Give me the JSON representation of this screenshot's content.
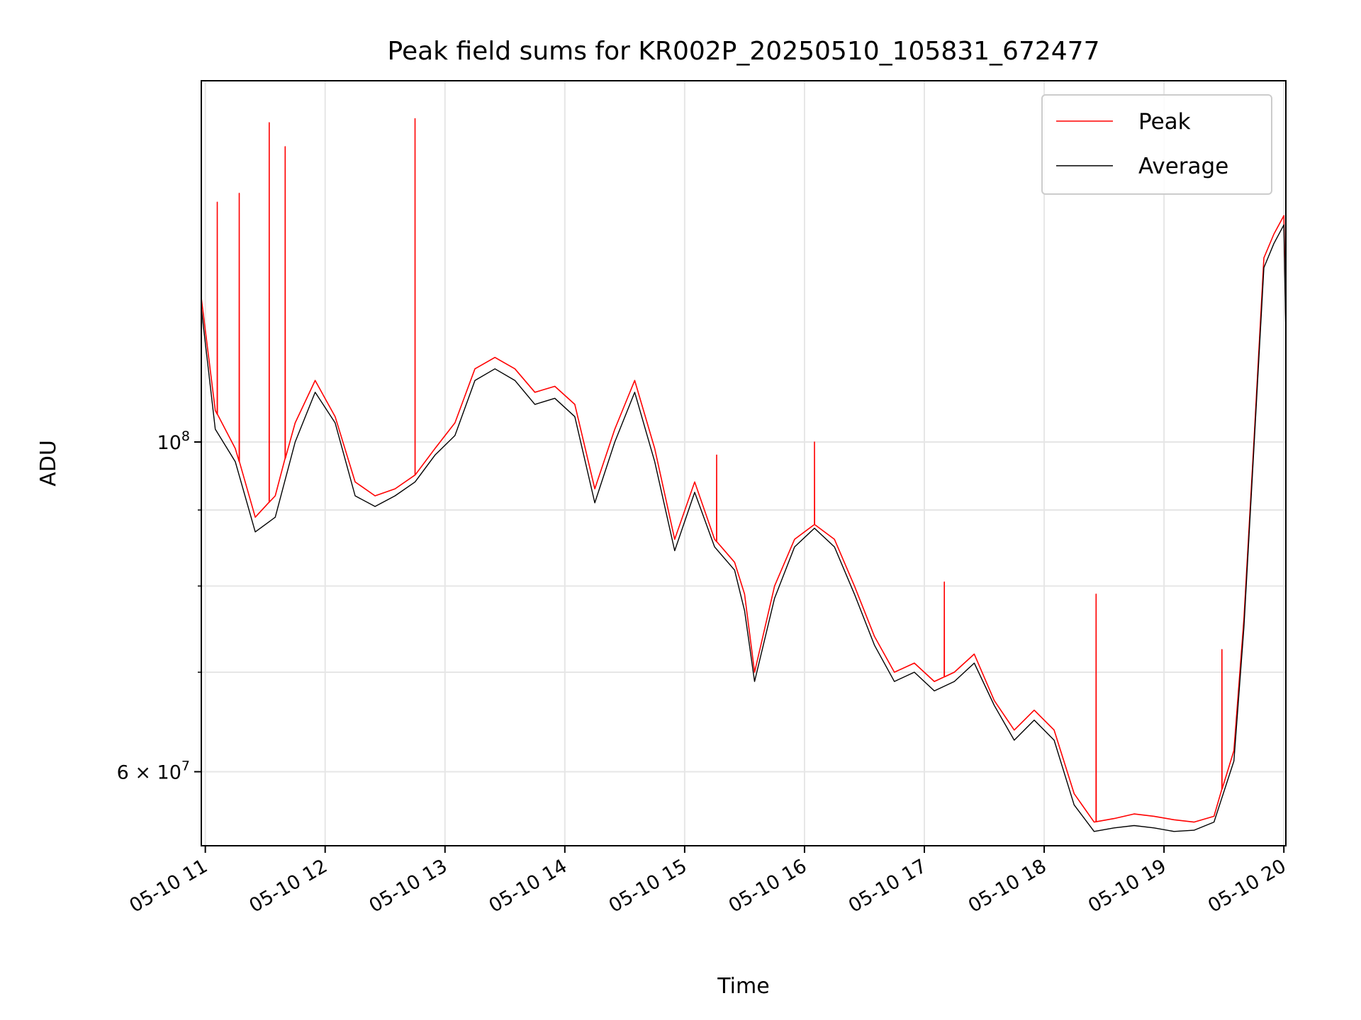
{
  "chart_data": {
    "type": "line",
    "title": "Peak field sums for KR002P_20250510_105831_672477",
    "xlabel": "Time",
    "ylabel": "ADU",
    "yscale": "log",
    "grid": true,
    "legend_position": "top-right",
    "xlim": [
      "05-10 10:58",
      "05-10 20:01"
    ],
    "ylim": [
      53500000,
      175000000
    ],
    "x_ticks": [
      "05-10 11",
      "05-10 12",
      "05-10 13",
      "05-10 14",
      "05-10 15",
      "05-10 16",
      "05-10 17",
      "05-10 18",
      "05-10 19",
      "05-10 20"
    ],
    "y_tick_labels": [
      {
        "value": 100000000,
        "mantissa": "",
        "base": "10",
        "exp": "8"
      },
      {
        "value": 60000000,
        "mantissa": "6",
        "base": "10",
        "exp": "7"
      }
    ],
    "y_minor_ticks": [
      70000000,
      80000000,
      90000000
    ],
    "x": [
      "05-10 10:58",
      "05-10 11:05",
      "05-10 11:15",
      "05-10 11:25",
      "05-10 11:35",
      "05-10 11:45",
      "05-10 11:55",
      "05-10 12:05",
      "05-10 12:15",
      "05-10 12:25",
      "05-10 12:35",
      "05-10 12:45",
      "05-10 12:55",
      "05-10 13:05",
      "05-10 13:15",
      "05-10 13:25",
      "05-10 13:35",
      "05-10 13:45",
      "05-10 13:55",
      "05-10 14:05",
      "05-10 14:15",
      "05-10 14:25",
      "05-10 14:35",
      "05-10 14:45",
      "05-10 14:55",
      "05-10 15:05",
      "05-10 15:15",
      "05-10 15:25",
      "05-10 15:30",
      "05-10 15:35",
      "05-10 15:45",
      "05-10 15:55",
      "05-10 16:05",
      "05-10 16:15",
      "05-10 16:25",
      "05-10 16:35",
      "05-10 16:45",
      "05-10 16:55",
      "05-10 17:05",
      "05-10 17:15",
      "05-10 17:25",
      "05-10 17:35",
      "05-10 17:45",
      "05-10 17:55",
      "05-10 18:05",
      "05-10 18:15",
      "05-10 18:25",
      "05-10 18:35",
      "05-10 18:45",
      "05-10 18:55",
      "05-10 19:05",
      "05-10 19:15",
      "05-10 19:25",
      "05-10 19:35",
      "05-10 19:40",
      "05-10 19:45",
      "05-10 19:50",
      "05-10 19:55",
      "05-10 20:00",
      "05-10 20:01"
    ],
    "series": [
      {
        "name": "Peak",
        "color": "#ff0000",
        "values": [
          125000000,
          105000000,
          99000000,
          89000000,
          92000000,
          103000000,
          110000000,
          104000000,
          94000000,
          92000000,
          93000000,
          95000000,
          99000000,
          103000000,
          112000000,
          114000000,
          112000000,
          108000000,
          109000000,
          106000000,
          93000000,
          102000000,
          110000000,
          99000000,
          86000000,
          94000000,
          86000000,
          83000000,
          79000000,
          70000000,
          80000000,
          86000000,
          88000000,
          86000000,
          80000000,
          74000000,
          70000000,
          71000000,
          69000000,
          70000000,
          72000000,
          67000000,
          64000000,
          66000000,
          64000000,
          58000000,
          55500000,
          55800000,
          56200000,
          56000000,
          55700000,
          55500000,
          56000000,
          62000000,
          76000000,
          100000000,
          133000000,
          138000000,
          142000000,
          120000000
        ],
        "spikes": [
          {
            "x": "05-10 11:06",
            "value": 145000000
          },
          {
            "x": "05-10 11:17",
            "value": 147000000
          },
          {
            "x": "05-10 11:32",
            "value": 164000000
          },
          {
            "x": "05-10 11:40",
            "value": 158000000
          },
          {
            "x": "05-10 12:45",
            "value": 165000000
          },
          {
            "x": "05-10 15:16",
            "value": 98000000
          },
          {
            "x": "05-10 16:05",
            "value": 100000000
          },
          {
            "x": "05-10 17:10",
            "value": 80500000
          },
          {
            "x": "05-10 18:26",
            "value": 79000000
          },
          {
            "x": "05-10 19:29",
            "value": 72500000
          }
        ]
      },
      {
        "name": "Average",
        "color": "#000000",
        "values": [
          123000000,
          102000000,
          97000000,
          87000000,
          89000000,
          100000000,
          108000000,
          103000000,
          92000000,
          90500000,
          92000000,
          94000000,
          98000000,
          101000000,
          110000000,
          112000000,
          110000000,
          106000000,
          107000000,
          104000000,
          91000000,
          100000000,
          108000000,
          97000000,
          84500000,
          92500000,
          85000000,
          82000000,
          77000000,
          69000000,
          78500000,
          85000000,
          87500000,
          85000000,
          79000000,
          73000000,
          69000000,
          70000000,
          68000000,
          69000000,
          71000000,
          66500000,
          63000000,
          65000000,
          63000000,
          57000000,
          54700000,
          55000000,
          55200000,
          55000000,
          54700000,
          54800000,
          55500000,
          61000000,
          75000000,
          99000000,
          131000000,
          136000000,
          140000000,
          118000000
        ]
      }
    ]
  }
}
